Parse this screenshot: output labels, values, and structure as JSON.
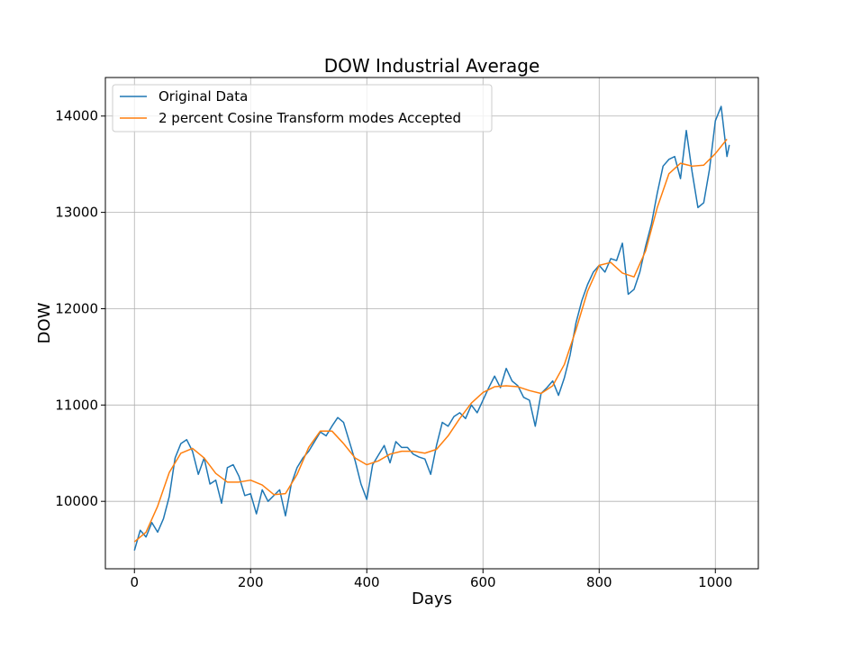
{
  "chart_data": {
    "type": "line",
    "title": "DOW Industrial Average",
    "xlabel": "Days",
    "ylabel": "DOW",
    "xlim": [
      -50,
      1074
    ],
    "ylim": [
      9300,
      14400
    ],
    "xticks": [
      0,
      200,
      400,
      600,
      800,
      1000
    ],
    "yticks": [
      10000,
      11000,
      12000,
      13000,
      14000
    ],
    "grid": true,
    "legend_position": "top-left",
    "series": [
      {
        "name": "Original Data",
        "color": "#1f77b4",
        "x": [
          0,
          10,
          20,
          30,
          40,
          50,
          60,
          70,
          80,
          90,
          100,
          110,
          120,
          130,
          140,
          150,
          160,
          170,
          180,
          190,
          200,
          210,
          220,
          230,
          240,
          250,
          260,
          270,
          280,
          290,
          300,
          310,
          320,
          330,
          340,
          350,
          360,
          370,
          380,
          390,
          400,
          410,
          420,
          430,
          440,
          450,
          460,
          470,
          480,
          490,
          500,
          510,
          520,
          530,
          540,
          550,
          560,
          570,
          580,
          590,
          600,
          610,
          620,
          630,
          640,
          650,
          660,
          670,
          680,
          690,
          700,
          710,
          720,
          730,
          740,
          750,
          760,
          770,
          780,
          790,
          800,
          810,
          820,
          830,
          840,
          850,
          860,
          870,
          880,
          890,
          900,
          910,
          920,
          930,
          940,
          950,
          960,
          970,
          980,
          990,
          1000,
          1010,
          1020,
          1024
        ],
        "values": [
          9490,
          9700,
          9630,
          9780,
          9680,
          9820,
          10050,
          10450,
          10600,
          10640,
          10520,
          10280,
          10450,
          10180,
          10220,
          9980,
          10350,
          10380,
          10260,
          10060,
          10080,
          9870,
          10120,
          10000,
          10060,
          10120,
          9850,
          10180,
          10350,
          10450,
          10520,
          10620,
          10720,
          10680,
          10780,
          10870,
          10820,
          10620,
          10420,
          10180,
          10020,
          10380,
          10480,
          10580,
          10400,
          10620,
          10560,
          10560,
          10490,
          10460,
          10440,
          10280,
          10580,
          10820,
          10780,
          10880,
          10920,
          10860,
          11000,
          10920,
          11050,
          11180,
          11300,
          11180,
          11380,
          11250,
          11200,
          11080,
          11050,
          10780,
          11120,
          11180,
          11250,
          11100,
          11280,
          11520,
          11850,
          12080,
          12250,
          12380,
          12450,
          12380,
          12520,
          12500,
          12680,
          12150,
          12200,
          12380,
          12650,
          12880,
          13200,
          13480,
          13550,
          13580,
          13350,
          13850,
          13420,
          13050,
          13100,
          13450,
          13950,
          14100,
          13580,
          13700
        ]
      },
      {
        "name": "2 percent Cosine Transform modes Accepted",
        "color": "#ff7f0e",
        "x": [
          0,
          20,
          40,
          60,
          80,
          100,
          120,
          140,
          160,
          180,
          200,
          220,
          240,
          260,
          280,
          300,
          320,
          340,
          360,
          380,
          400,
          420,
          440,
          460,
          480,
          500,
          520,
          540,
          560,
          580,
          600,
          620,
          640,
          660,
          680,
          700,
          720,
          740,
          760,
          780,
          800,
          820,
          840,
          860,
          880,
          900,
          920,
          940,
          960,
          980,
          1000,
          1020
        ],
        "values": [
          9580,
          9680,
          9950,
          10300,
          10500,
          10550,
          10450,
          10290,
          10200,
          10200,
          10220,
          10170,
          10070,
          10080,
          10280,
          10560,
          10730,
          10730,
          10600,
          10450,
          10380,
          10420,
          10490,
          10520,
          10520,
          10500,
          10540,
          10680,
          10860,
          11020,
          11130,
          11190,
          11200,
          11190,
          11150,
          11120,
          11200,
          11420,
          11780,
          12180,
          12450,
          12480,
          12370,
          12330,
          12600,
          13050,
          13400,
          13510,
          13480,
          13490,
          13610,
          13760
        ]
      }
    ]
  }
}
